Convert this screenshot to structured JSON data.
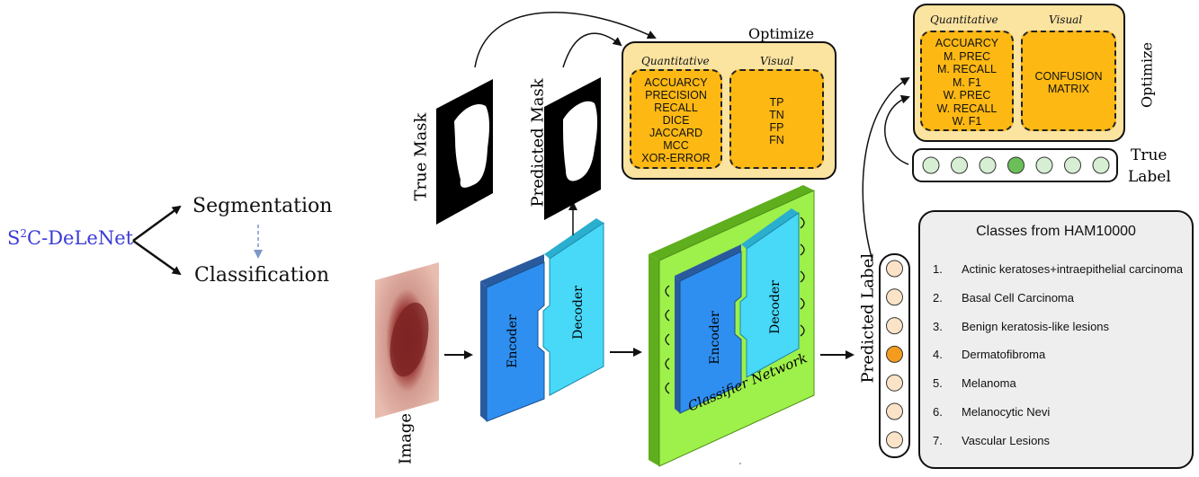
{
  "left": {
    "model_base": "S",
    "model_sup": "2",
    "model_rest": "C-DeLeNet",
    "task_segmentation": "Segmentation",
    "task_classification": "Classification"
  },
  "segmentation": {
    "image_label": "Image",
    "true_mask_label": "True Mask",
    "predicted_mask_label": "Predicted Mask",
    "encoder_label": "Encoder",
    "decoder_label": "Decoder",
    "optimize_label": "Optimize",
    "quantitative_heading": "Quantitative",
    "visual_heading": "Visual",
    "quantitative_metrics": [
      "ACCUARCY",
      "PRECISION",
      "RECALL",
      "DICE",
      "JACCARD",
      "MCC",
      "XOR-ERROR"
    ],
    "visual_metrics": [
      "TP",
      "TN",
      "FP",
      "FN"
    ]
  },
  "classification": {
    "encoder_label": "Encoder",
    "decoder_label": "Decoder",
    "network_label": "Classifier Network",
    "predicted_label": "Predicted Label",
    "true_label_line1": "True",
    "true_label_line2": "Label",
    "optimize_label": "Optimize",
    "quantitative_heading": "Quantitative",
    "visual_heading": "Visual",
    "quantitative_metrics": [
      "ACCUARCY",
      "M. PREC",
      "M. RECALL",
      "M. F1",
      "W. PREC",
      "W. RECALL",
      "W. F1"
    ],
    "visual_metrics": [
      "CONFUSION",
      "MATRIX"
    ],
    "predicted_highlight_index": 3,
    "true_highlight_index": 3
  },
  "classes_panel": {
    "title": "Classes from HAM10000",
    "items": [
      {
        "num": "1.",
        "name": "Actinic keratoses+intraepithelial carcinoma"
      },
      {
        "num": "2.",
        "name": "Basal Cell Carcinoma"
      },
      {
        "num": "3.",
        "name": "Benign keratosis-like lesions"
      },
      {
        "num": "4.",
        "name": "Dermatofibroma"
      },
      {
        "num": "5.",
        "name": "Melanoma"
      },
      {
        "num": "6.",
        "name": "Melanocytic Nevi"
      },
      {
        "num": "7.",
        "name": "Vascular Lesions"
      }
    ]
  },
  "colors": {
    "model_name": "#3b3bd6",
    "encoder": "#2E8FF0",
    "encoder_side": "#2A5A9E",
    "decoder": "#48D8F8",
    "decoder_side": "#2AAFCF",
    "classifier_plate": "#9EF04A",
    "classifier_side": "#5FAE1E",
    "metrics_bg": "#FBE3A0",
    "metrics_box": "#FDB813",
    "class_node": "#FBE3C8",
    "highlight_pred": "#F39C1E",
    "highlight_true": "#6BBF59",
    "true_node": "#D6EFD3"
  }
}
